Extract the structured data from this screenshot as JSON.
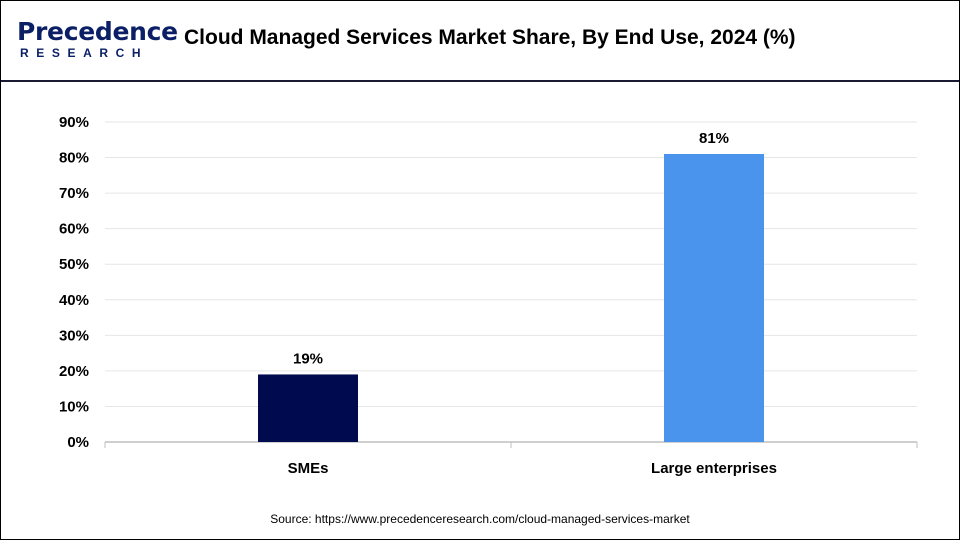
{
  "header": {
    "logo_text": "Precedence",
    "logo_subtext": "RESEARCH",
    "title": "Cloud Managed Services Market Share, By End Use, 2024 (%)"
  },
  "chart_data": {
    "type": "bar",
    "title": "Cloud Managed Services Market Share, By End Use, 2024 (%)",
    "categories": [
      "SMEs",
      "Large enterprises"
    ],
    "values": [
      19,
      81
    ],
    "data_labels": [
      "19%",
      "81%"
    ],
    "bar_colors": [
      "#000a4f",
      "#4a94ed"
    ],
    "ylim": [
      0,
      90
    ],
    "yticks": [
      0,
      10,
      20,
      30,
      40,
      50,
      60,
      70,
      80,
      90
    ],
    "ytick_labels": [
      "0%",
      "10%",
      "20%",
      "30%",
      "40%",
      "50%",
      "60%",
      "70%",
      "80%",
      "90%"
    ],
    "xlabel": "",
    "ylabel": "",
    "grid": true,
    "legend": "none"
  },
  "footer": {
    "source": "Source: https://www.precedenceresearch.com/cloud-managed-services-market"
  },
  "colors": {
    "brand": "#0a1f66",
    "grid": "#e6e6e6",
    "axis": "#bfbfbf"
  }
}
